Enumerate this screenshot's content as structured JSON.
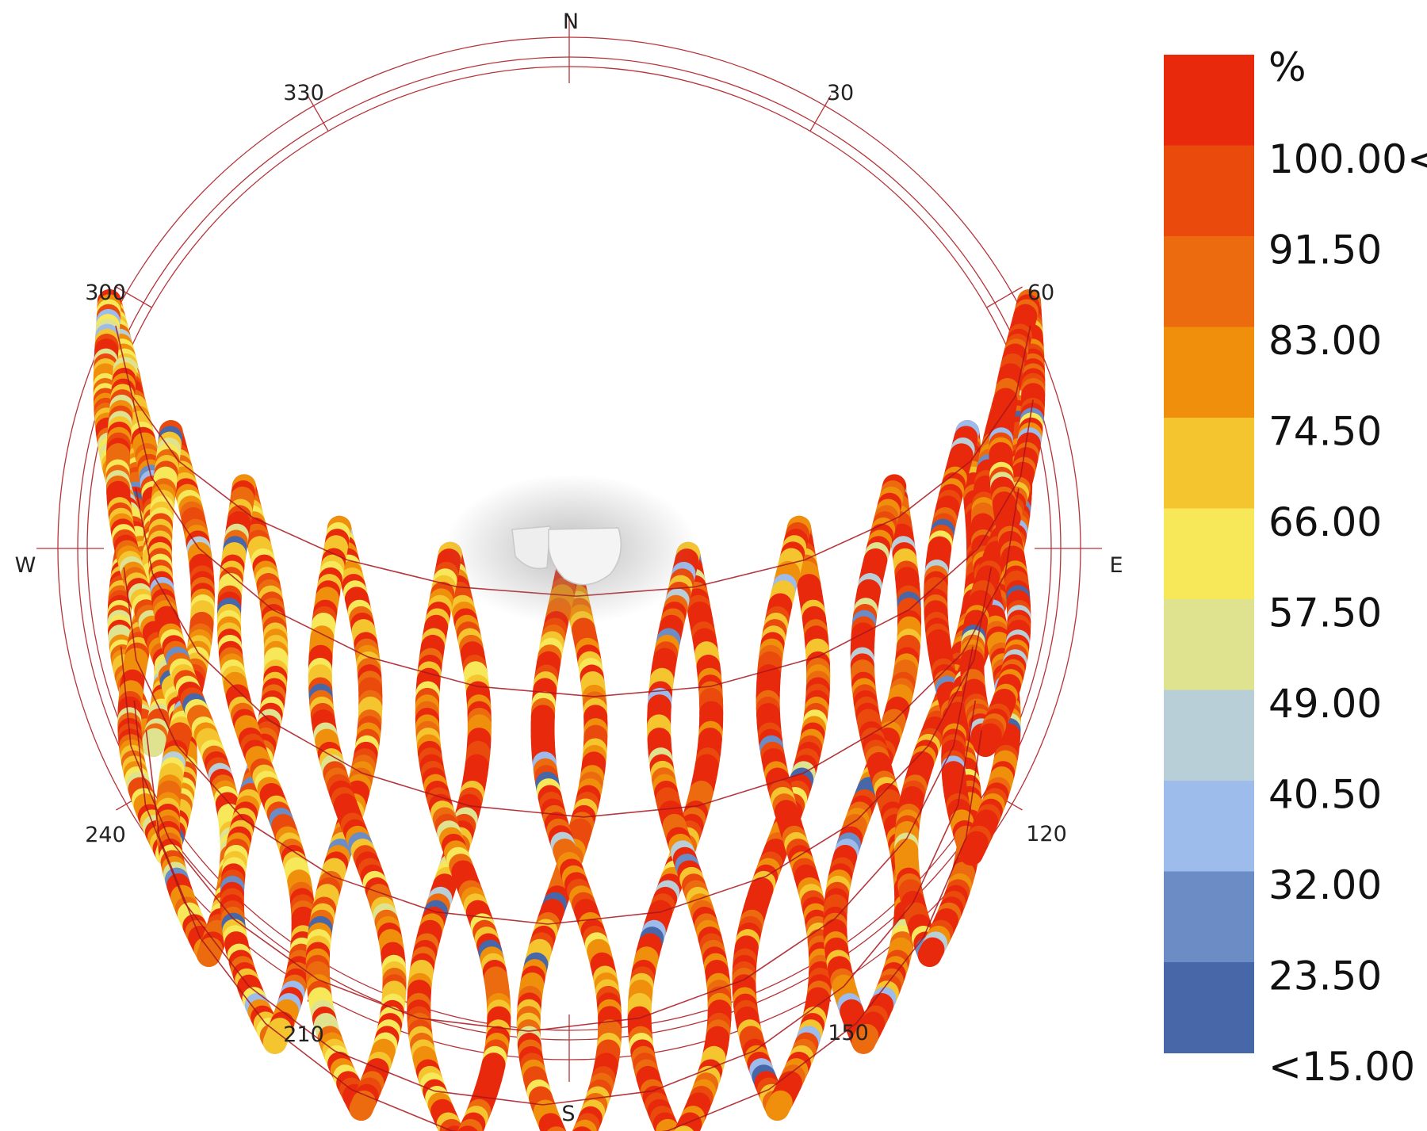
{
  "chart_data": {
    "type": "heatmap",
    "subtype": "polar-sunpath",
    "title": "",
    "cardinal_labels": {
      "north": "N",
      "south": "S",
      "east": "E",
      "west": "W"
    },
    "azimuth_labels": [
      "30",
      "60",
      "120",
      "150",
      "210",
      "240",
      "300",
      "330"
    ],
    "legend": {
      "unit": "%",
      "position": "right",
      "labels": [
        "100.00<",
        "91.50",
        "83.00",
        "74.50",
        "66.00",
        "57.50",
        "49.00",
        "40.50",
        "32.00",
        "23.50",
        "<15.00"
      ],
      "colors": [
        "#e8290c",
        "#ea4a0c",
        "#ec6b0e",
        "#f08f0c",
        "#f5c530",
        "#f7e85a",
        "#dfe28f",
        "#b9cfd8",
        "#9dbbeb",
        "#6c8cc6",
        "#4867a8"
      ]
    },
    "analemma_bands": 13,
    "grid": true
  },
  "colors": {
    "grid_line": "#b5343a",
    "sun_path": "#a8141c"
  }
}
